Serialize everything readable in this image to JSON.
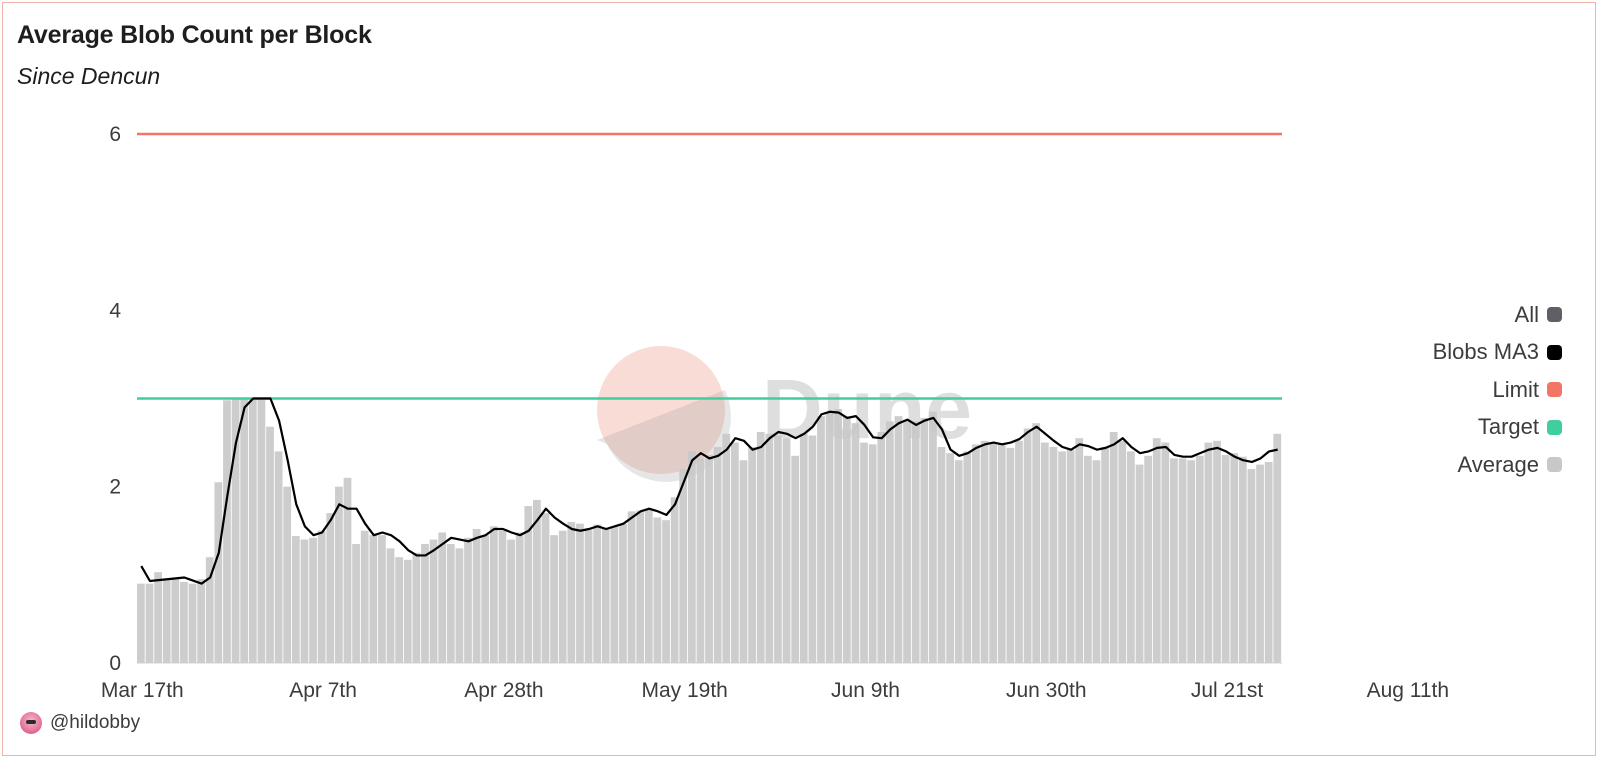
{
  "chart_data": {
    "type": "bar",
    "title": "Average Blob Count per Block",
    "subtitle": "Since Dencun",
    "xlabel": "",
    "ylabel": "",
    "ylim": [
      0,
      6
    ],
    "yticks": [
      0,
      2,
      4,
      6
    ],
    "x_tick_labels": [
      "Mar 17th",
      "Apr 7th",
      "Apr 28th",
      "May 19th",
      "Jun 9th",
      "Jun 30th",
      "Jul 21st",
      "Aug 11th"
    ],
    "x_tick_day_index": [
      0,
      21,
      42,
      63,
      84,
      105,
      126,
      147
    ],
    "grid": false,
    "legend_position": "right",
    "start_date": "Mar 17th",
    "series": [
      {
        "name": "All",
        "kind": "legend-only",
        "color": "#5f5f66"
      },
      {
        "name": "Blobs MA3",
        "kind": "line",
        "color": "#000000"
      },
      {
        "name": "Limit",
        "kind": "hline",
        "value": 6,
        "color": "#f27565"
      },
      {
        "name": "Target",
        "kind": "hline",
        "value": 3,
        "color": "#3fcf9c"
      },
      {
        "name": "Average",
        "kind": "bar",
        "color": "#c8c8c8",
        "anchors": [
          [
            0,
            0.9
          ],
          [
            1,
            0.9
          ],
          [
            2,
            1.03
          ],
          [
            3,
            0.95
          ],
          [
            4,
            0.97
          ],
          [
            5,
            0.92
          ],
          [
            6,
            0.9
          ],
          [
            7,
            0.95
          ],
          [
            8,
            1.2
          ],
          [
            9,
            2.05
          ],
          [
            10,
            2.98
          ],
          [
            11,
            3.0
          ],
          [
            12,
            3.0
          ],
          [
            13,
            3.0
          ],
          [
            14,
            3.0
          ],
          [
            15,
            2.68
          ],
          [
            16,
            2.4
          ],
          [
            17,
            2.0
          ],
          [
            18,
            1.44
          ],
          [
            19,
            1.4
          ],
          [
            20,
            1.42
          ],
          [
            21,
            1.5
          ],
          [
            22,
            1.7
          ],
          [
            23,
            2.0
          ],
          [
            24,
            2.1
          ],
          [
            25,
            1.35
          ],
          [
            26,
            1.5
          ],
          [
            27,
            1.45
          ],
          [
            28,
            1.45
          ],
          [
            29,
            1.3
          ],
          [
            30,
            1.2
          ],
          [
            31,
            1.17
          ],
          [
            32,
            1.25
          ],
          [
            33,
            1.35
          ],
          [
            34,
            1.4
          ],
          [
            35,
            1.48
          ],
          [
            36,
            1.35
          ],
          [
            37,
            1.3
          ],
          [
            38,
            1.42
          ],
          [
            39,
            1.52
          ],
          [
            40,
            1.45
          ],
          [
            41,
            1.55
          ],
          [
            42,
            1.5
          ],
          [
            43,
            1.4
          ],
          [
            44,
            1.48
          ],
          [
            45,
            1.78
          ],
          [
            46,
            1.85
          ],
          [
            47,
            1.7
          ],
          [
            48,
            1.45
          ],
          [
            49,
            1.5
          ],
          [
            50,
            1.6
          ],
          [
            51,
            1.58
          ],
          [
            52,
            1.52
          ],
          [
            53,
            1.57
          ],
          [
            54,
            1.53
          ],
          [
            55,
            1.55
          ],
          [
            56,
            1.58
          ],
          [
            57,
            1.72
          ],
          [
            58,
            1.73
          ],
          [
            59,
            1.75
          ],
          [
            60,
            1.65
          ],
          [
            61,
            1.62
          ],
          [
            62,
            1.88
          ],
          [
            63,
            2.2
          ],
          [
            64,
            2.4
          ],
          [
            65,
            2.32
          ],
          [
            66,
            2.36
          ],
          [
            67,
            2.45
          ],
          [
            68,
            2.6
          ],
          [
            69,
            2.5
          ],
          [
            70,
            2.3
          ],
          [
            71,
            2.45
          ],
          [
            72,
            2.62
          ],
          [
            73,
            2.6
          ],
          [
            74,
            2.58
          ],
          [
            75,
            2.55
          ],
          [
            76,
            2.35
          ],
          [
            77,
            2.6
          ],
          [
            78,
            2.58
          ],
          [
            79,
            2.8
          ],
          [
            80,
            2.85
          ],
          [
            81,
            2.88
          ],
          [
            82,
            2.8
          ],
          [
            83,
            2.72
          ],
          [
            84,
            2.5
          ],
          [
            85,
            2.48
          ],
          [
            86,
            2.62
          ],
          [
            87,
            2.74
          ],
          [
            88,
            2.8
          ],
          [
            89,
            2.75
          ],
          [
            90,
            2.74
          ],
          [
            91,
            2.78
          ],
          [
            92,
            2.85
          ],
          [
            93,
            2.45
          ],
          [
            94,
            2.38
          ],
          [
            95,
            2.3
          ],
          [
            96,
            2.4
          ],
          [
            97,
            2.48
          ],
          [
            98,
            2.52
          ],
          [
            99,
            2.5
          ],
          [
            100,
            2.48
          ],
          [
            101,
            2.44
          ],
          [
            102,
            2.52
          ],
          [
            103,
            2.66
          ],
          [
            104,
            2.72
          ],
          [
            105,
            2.5
          ],
          [
            106,
            2.45
          ],
          [
            107,
            2.4
          ],
          [
            108,
            2.42
          ],
          [
            109,
            2.55
          ],
          [
            110,
            2.35
          ],
          [
            111,
            2.3
          ],
          [
            112,
            2.45
          ],
          [
            113,
            2.62
          ],
          [
            114,
            2.52
          ],
          [
            115,
            2.4
          ],
          [
            116,
            2.25
          ],
          [
            117,
            2.35
          ],
          [
            118,
            2.55
          ],
          [
            119,
            2.5
          ],
          [
            120,
            2.32
          ],
          [
            121,
            2.32
          ],
          [
            122,
            2.3
          ],
          [
            123,
            2.35
          ],
          [
            124,
            2.5
          ],
          [
            125,
            2.52
          ],
          [
            126,
            2.36
          ],
          [
            127,
            2.38
          ],
          [
            128,
            2.34
          ],
          [
            129,
            2.2
          ],
          [
            130,
            2.25
          ],
          [
            131,
            2.28
          ],
          [
            132,
            2.6
          ]
        ]
      },
      {
        "name": "Blobs MA3 values",
        "kind": "line-data",
        "anchors": [
          [
            0,
            1.1
          ],
          [
            1,
            0.93
          ],
          [
            3,
            0.95
          ],
          [
            5,
            0.97
          ],
          [
            7,
            0.9
          ],
          [
            8,
            0.97
          ],
          [
            9,
            1.25
          ],
          [
            10,
            1.9
          ],
          [
            11,
            2.5
          ],
          [
            12,
            2.9
          ],
          [
            13,
            3.0
          ],
          [
            14,
            3.0
          ],
          [
            15,
            3.0
          ],
          [
            16,
            2.75
          ],
          [
            17,
            2.3
          ],
          [
            18,
            1.8
          ],
          [
            19,
            1.55
          ],
          [
            20,
            1.45
          ],
          [
            21,
            1.48
          ],
          [
            22,
            1.62
          ],
          [
            23,
            1.8
          ],
          [
            24,
            1.75
          ],
          [
            25,
            1.75
          ],
          [
            26,
            1.58
          ],
          [
            27,
            1.45
          ],
          [
            28,
            1.48
          ],
          [
            29,
            1.45
          ],
          [
            30,
            1.38
          ],
          [
            31,
            1.28
          ],
          [
            32,
            1.22
          ],
          [
            33,
            1.22
          ],
          [
            34,
            1.28
          ],
          [
            35,
            1.35
          ],
          [
            36,
            1.42
          ],
          [
            37,
            1.4
          ],
          [
            38,
            1.38
          ],
          [
            39,
            1.42
          ],
          [
            40,
            1.45
          ],
          [
            41,
            1.52
          ],
          [
            42,
            1.52
          ],
          [
            43,
            1.48
          ],
          [
            44,
            1.45
          ],
          [
            45,
            1.5
          ],
          [
            46,
            1.62
          ],
          [
            47,
            1.75
          ],
          [
            48,
            1.65
          ],
          [
            49,
            1.58
          ],
          [
            50,
            1.52
          ],
          [
            51,
            1.5
          ],
          [
            52,
            1.52
          ],
          [
            53,
            1.55
          ],
          [
            54,
            1.52
          ],
          [
            55,
            1.55
          ],
          [
            56,
            1.58
          ],
          [
            57,
            1.65
          ],
          [
            58,
            1.72
          ],
          [
            59,
            1.75
          ],
          [
            60,
            1.72
          ],
          [
            61,
            1.68
          ],
          [
            62,
            1.8
          ],
          [
            63,
            2.05
          ],
          [
            64,
            2.3
          ],
          [
            65,
            2.38
          ],
          [
            66,
            2.32
          ],
          [
            67,
            2.35
          ],
          [
            68,
            2.42
          ],
          [
            69,
            2.55
          ],
          [
            70,
            2.52
          ],
          [
            71,
            2.42
          ],
          [
            72,
            2.45
          ],
          [
            73,
            2.55
          ],
          [
            74,
            2.62
          ],
          [
            75,
            2.6
          ],
          [
            76,
            2.55
          ],
          [
            77,
            2.6
          ],
          [
            78,
            2.68
          ],
          [
            79,
            2.82
          ],
          [
            80,
            2.85
          ],
          [
            81,
            2.84
          ],
          [
            82,
            2.78
          ],
          [
            83,
            2.8
          ],
          [
            84,
            2.7
          ],
          [
            85,
            2.56
          ],
          [
            86,
            2.55
          ],
          [
            87,
            2.65
          ],
          [
            88,
            2.72
          ],
          [
            89,
            2.76
          ],
          [
            90,
            2.7
          ],
          [
            91,
            2.75
          ],
          [
            92,
            2.78
          ],
          [
            93,
            2.65
          ],
          [
            94,
            2.42
          ],
          [
            95,
            2.35
          ],
          [
            96,
            2.38
          ],
          [
            97,
            2.44
          ],
          [
            98,
            2.48
          ],
          [
            99,
            2.5
          ],
          [
            100,
            2.48
          ],
          [
            101,
            2.5
          ],
          [
            102,
            2.54
          ],
          [
            103,
            2.62
          ],
          [
            104,
            2.68
          ],
          [
            105,
            2.6
          ],
          [
            106,
            2.52
          ],
          [
            107,
            2.45
          ],
          [
            108,
            2.42
          ],
          [
            109,
            2.48
          ],
          [
            110,
            2.46
          ],
          [
            111,
            2.42
          ],
          [
            112,
            2.44
          ],
          [
            113,
            2.48
          ],
          [
            114,
            2.55
          ],
          [
            115,
            2.45
          ],
          [
            116,
            2.38
          ],
          [
            117,
            2.4
          ],
          [
            118,
            2.44
          ],
          [
            119,
            2.45
          ],
          [
            120,
            2.36
          ],
          [
            121,
            2.34
          ],
          [
            122,
            2.34
          ],
          [
            123,
            2.38
          ],
          [
            124,
            2.42
          ],
          [
            125,
            2.44
          ],
          [
            126,
            2.4
          ],
          [
            127,
            2.34
          ],
          [
            128,
            2.3
          ],
          [
            129,
            2.28
          ],
          [
            130,
            2.32
          ],
          [
            131,
            2.4
          ],
          [
            132,
            2.42
          ]
        ]
      }
    ]
  },
  "legend": [
    {
      "label": "All",
      "color": "#5f5f66"
    },
    {
      "label": "Blobs MA3",
      "color": "#000000"
    },
    {
      "label": "Limit",
      "color": "#f27565"
    },
    {
      "label": "Target",
      "color": "#3fcf9c"
    },
    {
      "label": "Average",
      "color": "#c8c8c8"
    }
  ],
  "watermark": {
    "text": "Dune",
    "circle_color": "#f7c4bb"
  },
  "attribution": {
    "handle": "@hildobby"
  }
}
